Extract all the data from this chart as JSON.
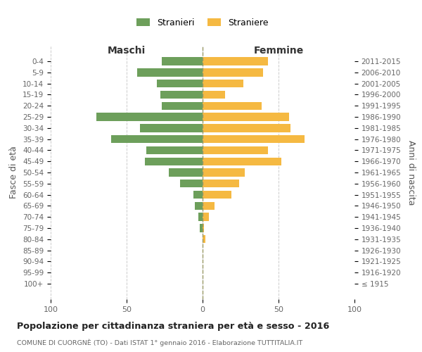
{
  "age_groups": [
    "100+",
    "95-99",
    "90-94",
    "85-89",
    "80-84",
    "75-79",
    "70-74",
    "65-69",
    "60-64",
    "55-59",
    "50-54",
    "45-49",
    "40-44",
    "35-39",
    "30-34",
    "25-29",
    "20-24",
    "15-19",
    "10-14",
    "5-9",
    "0-4"
  ],
  "birth_years": [
    "≤ 1915",
    "1916-1920",
    "1921-1925",
    "1926-1930",
    "1931-1935",
    "1936-1940",
    "1941-1945",
    "1946-1950",
    "1951-1955",
    "1956-1960",
    "1961-1965",
    "1966-1970",
    "1971-1975",
    "1976-1980",
    "1981-1985",
    "1986-1990",
    "1991-1995",
    "1996-2000",
    "2001-2005",
    "2006-2010",
    "2011-2015"
  ],
  "males": [
    0,
    0,
    0,
    0,
    0,
    2,
    3,
    5,
    6,
    15,
    22,
    38,
    37,
    60,
    41,
    70,
    27,
    28,
    30,
    43,
    27
  ],
  "females": [
    0,
    0,
    0,
    0,
    2,
    1,
    4,
    8,
    19,
    24,
    28,
    52,
    43,
    67,
    58,
    57,
    39,
    15,
    27,
    40,
    43
  ],
  "male_color": "#6d9f5b",
  "female_color": "#f5b942",
  "background_color": "#ffffff",
  "grid_color": "#cccccc",
  "title": "Popolazione per cittadinanza straniera per età e sesso - 2016",
  "subtitle": "COMUNE DI CUORGNÈ (TO) - Dati ISTAT 1° gennaio 2016 - Elaborazione TUTTITALIA.IT",
  "header_left": "Maschi",
  "header_right": "Femmine",
  "ylabel_left": "Fasce di età",
  "ylabel_right": "Anni di nascita",
  "legend_male": "Stranieri",
  "legend_female": "Straniere",
  "xlim": 100
}
